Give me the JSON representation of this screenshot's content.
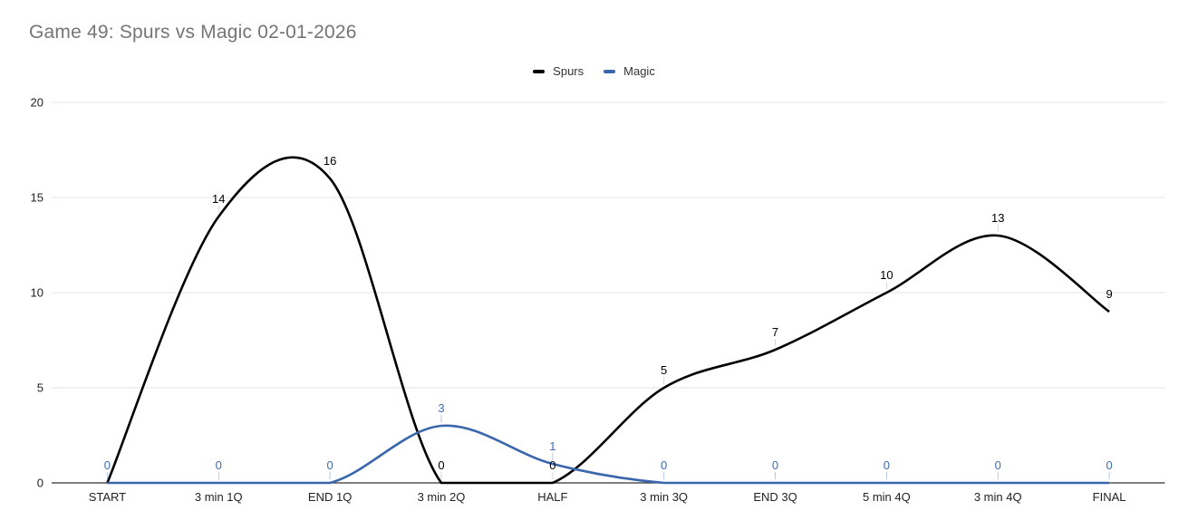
{
  "title": "Game 49: Spurs vs Magic 02-01-2026",
  "chart_data": {
    "type": "line",
    "smooth": true,
    "title": "Game 49: Spurs vs Magic 02-01-2026",
    "categories": [
      "START",
      "3 min 1Q",
      "END 1Q",
      "3 min 2Q",
      "HALF",
      "3 min 3Q",
      "END 3Q",
      "5 min 4Q",
      "3 min 4Q",
      "FINAL"
    ],
    "series": [
      {
        "name": "Spurs",
        "color": "#000000",
        "label_color": "#000000",
        "leader_tick_color": "#d6d6d6",
        "values": [
          0,
          14,
          16,
          0,
          0,
          5,
          7,
          10,
          13,
          9
        ],
        "point_labels": [
          null,
          "14",
          "16",
          "0",
          "0",
          "5",
          "7",
          "10",
          "13",
          "9"
        ]
      },
      {
        "name": "Magic",
        "color": "#3a66ac",
        "label_color": "#3e6cb2",
        "leader_tick_color": "#b3c7e6",
        "values": [
          0,
          0,
          0,
          3,
          1,
          0,
          0,
          0,
          0,
          0
        ],
        "point_labels": [
          "0",
          "0",
          "0",
          "3",
          "1",
          "0",
          "0",
          "0",
          "0",
          "0"
        ]
      }
    ],
    "xlabel": "",
    "ylabel": "",
    "ylim": [
      0,
      20
    ],
    "yticks": [
      0,
      5,
      10,
      15,
      20
    ],
    "grid": true,
    "legend_position": "top",
    "grid_color": "#e4e4e4",
    "axis_line_color": "#333333",
    "tick_label_color": "#222222",
    "title_color": "#757575",
    "background_color": "#ffffff"
  }
}
